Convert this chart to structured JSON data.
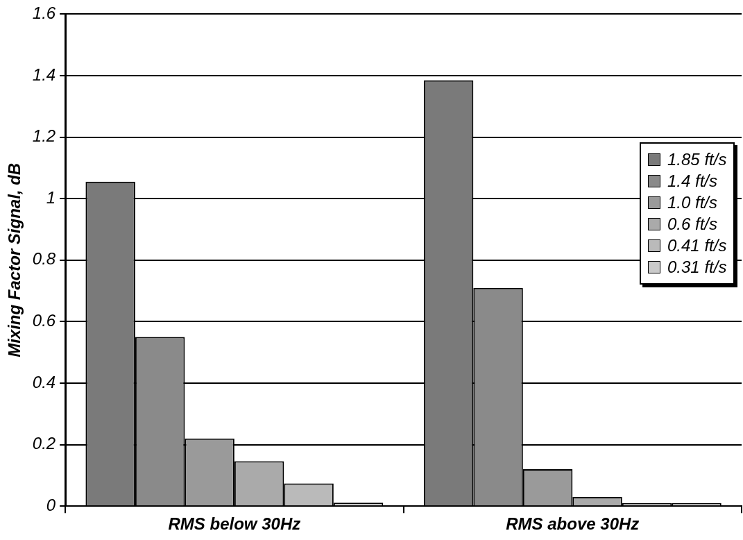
{
  "chart_data": {
    "type": "bar",
    "ylabel": "Mixing Factor Signal, dB",
    "categories": [
      "RMS below 30Hz",
      "RMS above 30Hz"
    ],
    "series": [
      {
        "name": "1.85 ft/s",
        "color": "#7a7a7a",
        "values": [
          1.055,
          1.385
        ]
      },
      {
        "name": "1.4 ft/s",
        "color": "#8a8a8a",
        "values": [
          0.55,
          0.71
        ]
      },
      {
        "name": "1.0 ft/s",
        "color": "#9a9a9a",
        "values": [
          0.22,
          0.12
        ]
      },
      {
        "name": "0.6 ft/s",
        "color": "#aaaaaa",
        "values": [
          0.146,
          0.03
        ]
      },
      {
        "name": "0.41 ft/s",
        "color": "#bababa",
        "values": [
          0.074,
          0.01
        ]
      },
      {
        "name": "0.31 ft/s",
        "color": "#cacaca",
        "values": [
          0.011,
          0.01
        ]
      }
    ],
    "ylim": [
      0,
      1.6
    ],
    "yticks": [
      0,
      0.2,
      0.4,
      0.6,
      0.8,
      1,
      1.2,
      1.4,
      1.6
    ],
    "grid": "y",
    "legend": "right"
  }
}
